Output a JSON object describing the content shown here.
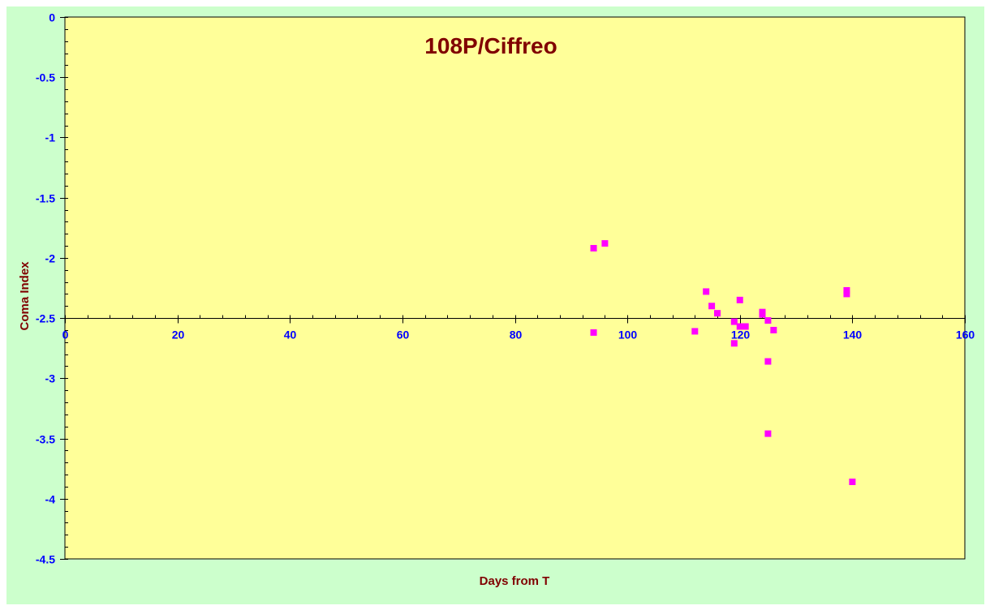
{
  "chart_data": {
    "type": "scatter",
    "title": "108P/Ciffreo",
    "xlabel": "Days from T",
    "ylabel": "Coma Index",
    "xlim": [
      0,
      160
    ],
    "ylim": [
      -4.5,
      0
    ],
    "x_ticks": [
      "0",
      "20",
      "40",
      "60",
      "80",
      "100",
      "120",
      "140",
      "160"
    ],
    "y_ticks": [
      "0",
      "-0.5",
      "-1",
      "-1.5",
      "-2",
      "-2.5",
      "-3",
      "-3.5",
      "-4",
      "-4.5"
    ],
    "x_tick_values": [
      0,
      20,
      40,
      60,
      80,
      100,
      120,
      140,
      160
    ],
    "y_tick_values": [
      0,
      -0.5,
      -1,
      -1.5,
      -2,
      -2.5,
      -3,
      -3.5,
      -4,
      -4.5
    ],
    "x_axis_crosses_y_at": -2.5,
    "grid": false,
    "legend": "none",
    "series": [
      {
        "marker": "square",
        "color": "#ff00ff",
        "points": [
          [
            94,
            -1.92
          ],
          [
            96,
            -1.88
          ],
          [
            94,
            -2.62
          ],
          [
            112,
            -2.61
          ],
          [
            114,
            -2.28
          ],
          [
            115,
            -2.4
          ],
          [
            116,
            -2.46
          ],
          [
            119,
            -2.53
          ],
          [
            119,
            -2.71
          ],
          [
            120,
            -2.57
          ],
          [
            120,
            -2.35
          ],
          [
            121,
            -2.57
          ],
          [
            124,
            -2.47
          ],
          [
            124,
            -2.45
          ],
          [
            125,
            -2.52
          ],
          [
            125,
            -2.86
          ],
          [
            125,
            -3.46
          ],
          [
            126,
            -2.6
          ],
          [
            139,
            -2.27
          ],
          [
            139,
            -2.3
          ],
          [
            140,
            -3.86
          ]
        ]
      }
    ],
    "colors": {
      "outer_background": "#ccffcc",
      "plot_background": "#ffff99",
      "title": "#800000",
      "axis_title": "#800000",
      "tick_labels": "#0000ff",
      "marker": "#ff00ff"
    }
  }
}
